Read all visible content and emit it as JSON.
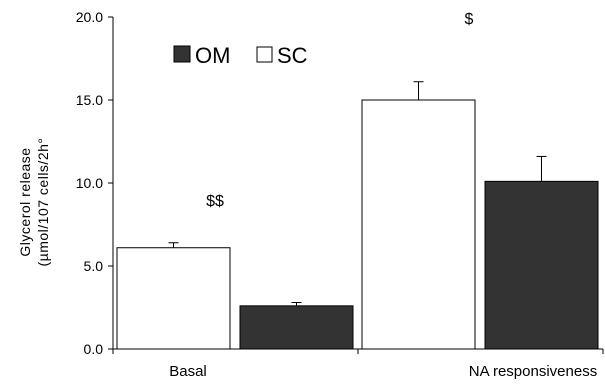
{
  "chart_data": {
    "type": "bar",
    "categories": [
      "Basal",
      "NA responsiveness"
    ],
    "series": [
      {
        "name": "SC",
        "values": [
          6.1,
          15.0
        ],
        "errors": [
          0.3,
          1.1
        ],
        "color": "#ffffff"
      },
      {
        "name": "OM",
        "values": [
          2.6,
          10.1
        ],
        "errors": [
          0.2,
          1.5
        ],
        "color": "#333333"
      }
    ],
    "ylabel_lines": [
      "Glycerol release",
      "(µmol/107 cells/2h°"
    ],
    "yticks": [
      "0.0",
      "5.0",
      "10.0",
      "15.0",
      "20.0"
    ],
    "ylim": [
      0,
      20
    ],
    "legend": [
      {
        "label": "OM",
        "swatch": "#333333"
      },
      {
        "label": "SC",
        "swatch": "#ffffff"
      }
    ],
    "legend_position": "top-left",
    "annotations": [
      {
        "text": "$$",
        "category": 0
      },
      {
        "text": "$",
        "category": 1
      }
    ],
    "grid": false
  }
}
